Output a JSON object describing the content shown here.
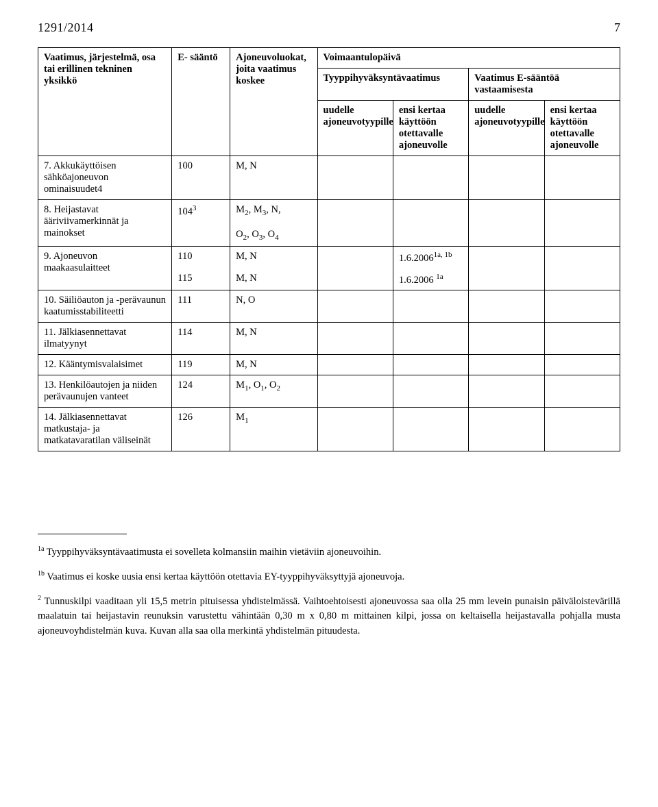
{
  "header": {
    "doc_id": "1291/2014",
    "page_number": "7"
  },
  "table": {
    "head": {
      "c1": "Vaatimus, järjestelmä, osa tai erillinen tekninen yksikkö",
      "c2": "E- sääntö",
      "c3": "Ajoneuvoluokat, joita vaatimus koskee",
      "c4_top": "Voimaantulopäivä",
      "c4a": "Tyyppihyväksyntävaatimus",
      "c4b": "Vaatimus E-sääntöä vastaamisesta",
      "c4a1": "uudelle ajoneuvotyypille",
      "c4a2": "ensi kertaa käyttöön otettavalle ajoneuvolle",
      "c4b1": "uudelle ajoneuvotyypille",
      "c4b2": "ensi kertaa käyttöön otettavalle ajoneuvolle"
    },
    "rows": [
      {
        "c1": "7. Akkukäyttöisen sähköajoneuvon ominaisuudet4",
        "c2": "100",
        "c3": "M, N",
        "c4a1": "",
        "c4a2": "",
        "c4b1": "",
        "c4b2": ""
      },
      {
        "c1": "8. Heijastavat ääriviivamerkinnät ja mainokset",
        "c2_html": "104<span class='sup'>3</span>",
        "c3_html": "M<span class='sub'>2</span>, M<span class='sub'>3</span>, N,<br><br>O<span class='sub'>2</span>, O<span class='sub'>3</span>, O<span class='sub'>4</span>",
        "c4a1": "",
        "c4a2": "",
        "c4b1": "",
        "c4b2": ""
      },
      {
        "c1": "9. Ajoneuvon maakaasulaitteet",
        "c2": "110",
        "c3": "M, N",
        "c4a1": "",
        "c4a2_html": "1.6.2006<span class='sup'>1a, 1b</span>",
        "c4b1": "",
        "c4b2": "",
        "split": true,
        "c2b": "115",
        "c3b": "M, N",
        "c4a2b_html": "1.6.2006 <span class='sup'>1a</span>"
      },
      {
        "c1": "10. Säiliöauton ja -perävaunun kaatumisstabiliteetti",
        "c2": "111",
        "c3": "N, O",
        "c4a1": "",
        "c4a2": "",
        "c4b1": "",
        "c4b2": ""
      },
      {
        "c1": "11. Jälkiasennettavat ilmatyynyt",
        "c2": "114",
        "c3": "M, N",
        "c4a1": "",
        "c4a2": "",
        "c4b1": "",
        "c4b2": ""
      },
      {
        "c1": "12. Kääntymisvalaisimet",
        "c2": "119",
        "c3": "M, N",
        "c4a1": "",
        "c4a2": "",
        "c4b1": "",
        "c4b2": ""
      },
      {
        "c1": "13. Henkilöautojen ja niiden perävaunujen vanteet",
        "c2": "124",
        "c3_html": "M<span class='sub'>1</span>, O<span class='sub'>1</span>, O<span class='sub'>2</span>",
        "c4a1": "",
        "c4a2": "",
        "c4b1": "",
        "c4b2": ""
      },
      {
        "c1": "14. Jälkiasennettavat matkustaja- ja matkatavaratilan väliseinät",
        "c2": "126",
        "c3_html": "M<span class='sub'>1</span>",
        "c4a1": "",
        "c4a2": "",
        "c4b1": "",
        "c4b2": ""
      }
    ]
  },
  "footnotes": {
    "fn1a": " Tyyppihyväksyntävaatimusta ei sovelleta kolmansiin maihin vietäviin ajoneuvoihin.",
    "fn1b": " Vaatimus ei koske uusia ensi kertaa käyttöön otettavia EY-tyyppihyväksyttyjä ajoneuvoja.",
    "fn2": " Tunnuskilpi vaaditaan yli 15,5 metrin pituisessa yhdistelmässä. Vaihtoehtoisesti ajoneuvossa saa olla 25 mm levein punaisin päiväloistevärillä maalatuin tai heijastavin reunuksin varustettu vähintään 0,30 m x 0,80 m mittainen kilpi, jossa on keltaisella heijastavalla pohjalla musta ajoneuvoyhdistelmän kuva. Kuvan alla saa olla merkintä yhdistelmän pituudesta."
  }
}
